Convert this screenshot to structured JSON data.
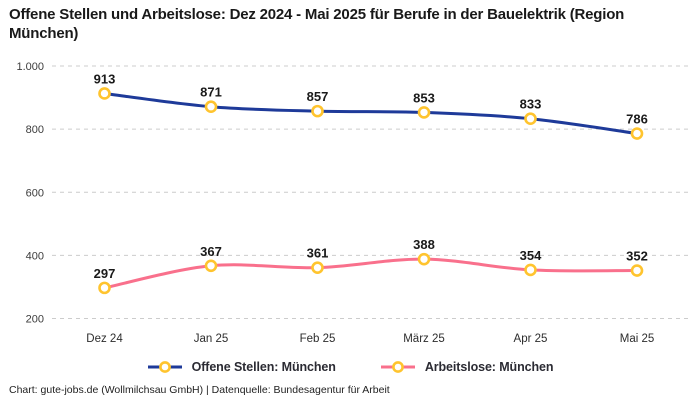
{
  "title": "Offene Stellen und Arbeitslose: Dez 2024 - Mai 2025 für Berufe in der Bauelektrik (Region München)",
  "footer": "Chart: gute-jobs.de (Wollmilchsau GmbH) | Datenquelle: Bundesagentur für Arbeit",
  "colors": {
    "series_open_positions": "#1e3a99",
    "series_unemployed": "#f9708c",
    "marker_ring": "#ffc42e",
    "marker_fill": "#ffffff",
    "gridline": "#cccccc",
    "tick_text": "#3c3c3c",
    "value_label_text": "#1a1a1a"
  },
  "chart_data": {
    "type": "line",
    "title": "Offene Stellen und Arbeitslose: Dez 2024 - Mai 2025 für Berufe in der Bauelektrik (Region München)",
    "categories": [
      "Dez 24",
      "Jan 25",
      "Feb 25",
      "März 25",
      "Apr 25",
      "Mai 25"
    ],
    "series": [
      {
        "name": "Offene Stellen: München",
        "color": "#1e3a99",
        "values": [
          913,
          871,
          857,
          853,
          833,
          786
        ]
      },
      {
        "name": "Arbeitslose: München",
        "color": "#f9708c",
        "values": [
          297,
          367,
          361,
          388,
          354,
          352
        ]
      }
    ],
    "ylim": [
      200,
      1000
    ],
    "yticks": [
      200,
      400,
      600,
      800,
      1000
    ],
    "ytick_labels": [
      "200",
      "400",
      "600",
      "800",
      "1.000"
    ],
    "xlabel": "",
    "ylabel": "",
    "grid": "horizontal-dashed",
    "legend_position": "bottom",
    "data_labels": true,
    "marker": "ring"
  },
  "legend": {
    "items": [
      {
        "label": "Offene Stellen: München"
      },
      {
        "label": "Arbeitslose: München"
      }
    ]
  }
}
